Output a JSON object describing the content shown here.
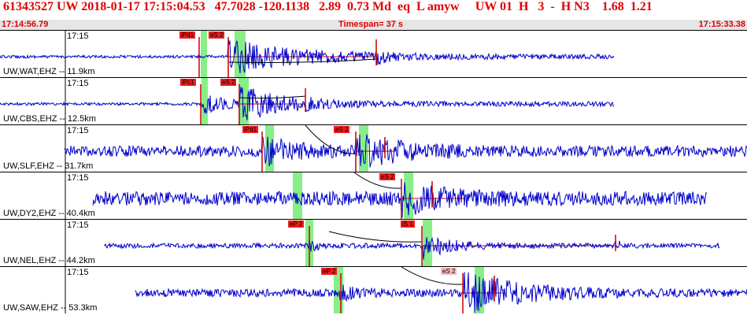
{
  "header": {
    "line1": "61343527 UW 2018-01-17 17:15:04.53   47.7028 -120.1138   2.89  0.73 Md  eq  L amyw     UW 01  H   3  -  H N3    1.68  1.21",
    "start_time": "17:14:56.79",
    "timespan": "Timespan=  37 s",
    "end_time": "17:15:33.38"
  },
  "colors": {
    "trace": "#0000cc",
    "pick": "#cc0000",
    "window": "#88ee88",
    "label_red": "#ee1c1c",
    "label_pink": "#f7b9b9",
    "theoretical_curve": "#000000"
  },
  "panels": [
    {
      "station": "UW,WAT,EHZ -- 11.9km",
      "tick": "17:15",
      "trace_start": 0,
      "trace_end": 780,
      "noise": 3,
      "quiet_until": 290,
      "events": [
        {
          "at": 290,
          "amp": 22,
          "decay": 90
        },
        {
          "at": 478,
          "amp": 6,
          "decay": 15
        }
      ],
      "windows": [
        [
          255,
          263
        ],
        [
          298,
          312
        ]
      ],
      "picks": [
        {
          "label": "iPd1",
          "x": 253,
          "style": "red",
          "label_x": 228
        },
        {
          "label": "eS 2",
          "x": 290,
          "style": "red",
          "label_x": 265
        }
      ],
      "spikes": [
        {
          "x": 478,
          "h": 22
        }
      ],
      "curve": [
        [
          290,
          40
        ],
        [
          478,
          36
        ]
      ],
      "horizon": [
        290,
        478
      ]
    },
    {
      "station": "UW,CBS,EHZ -- 12.5km",
      "tick": "17:15",
      "trace_start": 0,
      "trace_end": 780,
      "noise": 3,
      "quiet_until": 255,
      "events": [
        {
          "at": 255,
          "amp": 12,
          "decay": 30
        },
        {
          "at": 305,
          "amp": 20,
          "decay": 60
        },
        {
          "at": 388,
          "amp": 6,
          "decay": 10
        }
      ],
      "windows": [
        [
          256,
          264
        ],
        [
          303,
          316
        ]
      ],
      "picks": [
        {
          "label": "iPc1",
          "x": 255,
          "style": "red",
          "label_x": 229
        },
        {
          "label": "eS 2",
          "x": 304,
          "style": "red",
          "label_x": 280
        }
      ],
      "spikes": [
        {
          "x": 388,
          "h": 20
        }
      ],
      "curve": [
        [
          304,
          25
        ],
        [
          388,
          23
        ]
      ],
      "horizon": [
        304,
        388
      ]
    },
    {
      "station": "UW,SLF,EHZ -- 31.7km",
      "tick": "17:15",
      "trace_start": 82,
      "trace_end": 949,
      "noise": 7,
      "quiet_until": 0,
      "events": [
        {
          "at": 333,
          "amp": 16,
          "decay": 40
        },
        {
          "at": 452,
          "amp": 20,
          "decay": 55
        }
      ],
      "windows": [
        [
          337,
          348
        ],
        [
          456,
          468
        ]
      ],
      "picks": [
        {
          "label": "iPd1",
          "x": 333,
          "style": "red",
          "label_x": 308
        },
        {
          "label": "eS 2",
          "x": 452,
          "style": "red",
          "label_x": 424
        }
      ],
      "spikes": [
        {
          "x": 489,
          "h": 18
        }
      ],
      "curve": [
        [
          388,
          0
        ],
        [
          452,
          36
        ]
      ],
      "horizon": [
        452,
        500
      ]
    },
    {
      "station": "UW,DY2,EHZ -- 40.4km",
      "tick": "17:15",
      "trace_start": 118,
      "trace_end": 898,
      "noise": 9,
      "quiet_until": 0,
      "events": [
        {
          "at": 510,
          "amp": 18,
          "decay": 50
        }
      ],
      "windows": [
        [
          372,
          384
        ],
        [
          513,
          525
        ]
      ],
      "picks": [
        {
          "label": "eS 2",
          "x": 510,
          "style": "red",
          "label_x": 482
        }
      ],
      "spikes": [
        {
          "x": 549,
          "h": 22
        }
      ],
      "curve": [
        [
          450,
          0
        ],
        [
          510,
          20
        ]
      ],
      "horizon": [
        510,
        590
      ]
    },
    {
      "station": "UW,NEL,EHZ -- 44.2km",
      "tick": "17:15",
      "trace_start": 132,
      "trace_end": 914,
      "noise": 3,
      "quiet_until": 0,
      "events": [
        {
          "at": 393,
          "amp": 6,
          "decay": 20
        },
        {
          "at": 536,
          "amp": 16,
          "decay": 35
        },
        {
          "at": 782,
          "amp": 6,
          "decay": 8
        }
      ],
      "windows": [
        [
          388,
          398
        ],
        [
          537,
          549
        ]
      ],
      "picks": [
        {
          "label": "eP 2",
          "x": 393,
          "style": "red",
          "label_x": 366
        },
        {
          "label": "iS 1",
          "x": 536,
          "style": "red",
          "label_x": 509
        }
      ],
      "spikes": [
        {
          "x": 782,
          "h": 14
        }
      ],
      "curve": [
        [
          418,
          15
        ],
        [
          536,
          28
        ]
      ],
      "horizon": [
        536,
        782
      ]
    },
    {
      "station": "UW,SAW,EHZ -- 53.3km",
      "tick": "17:15",
      "trace_start": 172,
      "trace_end": 949,
      "noise": 5,
      "quiet_until": 0,
      "events": [
        {
          "at": 432,
          "amp": 7,
          "decay": 25
        },
        {
          "at": 590,
          "amp": 26,
          "decay": 70
        }
      ],
      "windows": [
        [
          424,
          436
        ],
        [
          603,
          615
        ]
      ],
      "picks": [
        {
          "label": "eP 2",
          "x": 433,
          "style": "red",
          "label_x": 408
        },
        {
          "label": "eS 2",
          "x": 588,
          "style": "pink",
          "label_x": 560
        }
      ],
      "spikes": [
        {
          "x": 628,
          "h": 22
        }
      ],
      "curve": [
        [
          510,
          0
        ],
        [
          588,
          22
        ]
      ],
      "horizon": [
        588,
        640
      ]
    }
  ]
}
